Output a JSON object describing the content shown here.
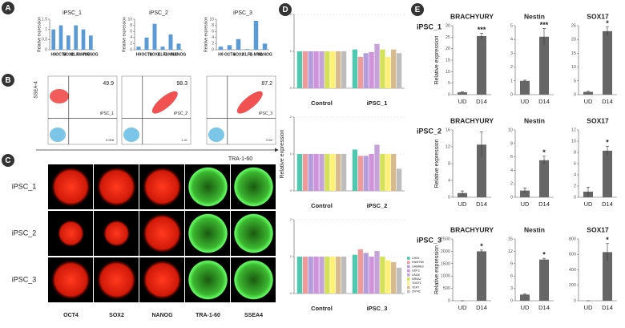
{
  "panel_labels": [
    "A",
    "B",
    "C",
    "D",
    "E"
  ],
  "flow_cytometry": {
    "y_label": "SSEA-4",
    "x_label": "TRA-1-60",
    "plots": [
      {
        "label": "iPSC_1",
        "upper_right": 49.9,
        "lower_right": 0.006
      },
      {
        "label": "iPSC_2",
        "upper_right": 98.3,
        "lower_right": 1.41
      },
      {
        "label": "iPSC_3",
        "upper_right": 87.2,
        "lower_right": 0.52
      }
    ]
  },
  "images": {
    "rows": [
      "iPSC_1",
      "iPSC_2",
      "iPSC_3"
    ],
    "columns": [
      "OCT4",
      "SOX2",
      "NANOG",
      "TRA-1-60",
      "SSEA4"
    ]
  },
  "chart_data": [
    {
      "type": "bar",
      "title": "iPSC_1",
      "y_label": "Relative expression",
      "categories": [
        "H9",
        "OCT4",
        "SOX2",
        "KLF4",
        "C-MYC",
        "NANOG"
      ],
      "values": [
        1,
        1.2,
        0.7,
        1.2,
        1.0,
        0.7
      ],
      "color": "#5b9bd5",
      "ylim": [
        0,
        1.5
      ],
      "yticks": [
        0,
        0.5,
        1,
        1.5
      ]
    },
    {
      "type": "bar",
      "title": "iPSC_2",
      "y_label": "Relative expression",
      "categories": [
        "H9",
        "OCT4",
        "SOX2",
        "KLF4",
        "C-MYC",
        "NANOG"
      ],
      "values": [
        1,
        4,
        8.5,
        1,
        5,
        2
      ],
      "color": "#5b9bd5",
      "ylim": [
        0,
        10
      ],
      "yticks": [
        0,
        2,
        4,
        6,
        8,
        10
      ]
    },
    {
      "type": "bar",
      "title": "iPSC_3",
      "y_label": "Relative expression",
      "categories": [
        "H9",
        "OCT4",
        "SOX2",
        "KLF4",
        "C-MYC",
        "NANOG"
      ],
      "values": [
        1,
        1.5,
        3.5,
        0.2,
        9.5,
        2
      ],
      "color": "#5b9bd5",
      "ylim": [
        0,
        10
      ],
      "yticks": [
        0,
        2,
        4,
        6,
        8,
        10
      ]
    },
    {
      "type": "bar",
      "categories": [
        "Control",
        "iPSC_1"
      ],
      "ylim": [
        0,
        2
      ],
      "yticks": [
        0,
        1,
        2
      ],
      "series": [
        {
          "color": "#4ec9b0",
          "values": [
            1,
            1.05
          ]
        },
        {
          "color": "#ef9a9a",
          "values": [
            1,
            0.85
          ]
        },
        {
          "color": "#b39ddb",
          "values": [
            1,
            0.95
          ]
        },
        {
          "color": "#ce93d8",
          "values": [
            1,
            0.98
          ]
        },
        {
          "color": "#c5a3d8",
          "values": [
            1,
            1.2
          ]
        },
        {
          "color": "#d4e157",
          "values": [
            1,
            1.05
          ]
        },
        {
          "color": "#fff176",
          "values": [
            1,
            0.85
          ]
        },
        {
          "color": "#d7b98e",
          "values": [
            1,
            1.05
          ]
        },
        {
          "color": "#bdbdbd",
          "values": [
            1,
            0.95
          ]
        }
      ]
    },
    {
      "type": "bar",
      "y_label": "Relative expression",
      "categories": [
        "Control",
        "iPSC_2"
      ],
      "ylim": [
        0,
        2
      ],
      "yticks": [
        0,
        1,
        2
      ],
      "series": [
        {
          "color": "#4ec9b0",
          "values": [
            1,
            1.12
          ]
        },
        {
          "color": "#ef9a9a",
          "values": [
            1,
            0.95
          ]
        },
        {
          "color": "#b39ddb",
          "values": [
            1,
            0.95
          ]
        },
        {
          "color": "#ce93d8",
          "values": [
            1,
            1.0
          ]
        },
        {
          "color": "#c5a3d8",
          "values": [
            1,
            1.25
          ]
        },
        {
          "color": "#d4e157",
          "values": [
            1,
            1.0
          ]
        },
        {
          "color": "#fff176",
          "values": [
            1,
            1.0
          ]
        },
        {
          "color": "#d7b98e",
          "values": [
            1,
            1.0
          ]
        },
        {
          "color": "#bdbdbd",
          "values": [
            1,
            0.6
          ]
        }
      ]
    },
    {
      "type": "bar",
      "categories": [
        "Control",
        "iPSC_3"
      ],
      "ylim": [
        0,
        2
      ],
      "yticks": [
        0,
        1,
        2
      ],
      "series": [
        {
          "name": "CHD1",
          "color": "#4ec9b0",
          "values": [
            1,
            1.05
          ]
        },
        {
          "name": "DNMT3B",
          "color": "#ef9a9a",
          "values": [
            1,
            1.2
          ]
        },
        {
          "name": "GABRB3",
          "color": "#b39ddb",
          "values": [
            1,
            1.1
          ]
        },
        {
          "name": "GDF3",
          "color": "#ce93d8",
          "values": [
            1,
            1.0
          ]
        },
        {
          "name": "LIN28",
          "color": "#c5a3d8",
          "values": [
            1,
            1.15
          ]
        },
        {
          "name": "NR5A2",
          "color": "#d4e157",
          "values": [
            1,
            1.0
          ]
        },
        {
          "name": "TDGF1",
          "color": "#fff176",
          "values": [
            1,
            0.9
          ]
        },
        {
          "name": "TERT",
          "color": "#d7b98e",
          "values": [
            1,
            0.85
          ]
        },
        {
          "name": "ZFP42",
          "color": "#bdbdbd",
          "values": [
            1,
            0.7
          ]
        }
      ]
    },
    {
      "type": "bar",
      "row_label": "iPSC_1",
      "title": "BRACHYURY",
      "y_label": "Relative expression",
      "categories": [
        "UD",
        "D14"
      ],
      "values": [
        1,
        25.5
      ],
      "errors": [
        0.2,
        1.2
      ],
      "significance": [
        null,
        "***"
      ],
      "color": "#666666",
      "ylim": [
        0,
        30
      ],
      "yticks": [
        0,
        5,
        10,
        15,
        20,
        25,
        30
      ]
    },
    {
      "type": "bar",
      "title": "Nestin",
      "categories": [
        "UD",
        "D14"
      ],
      "values": [
        1,
        4.2
      ],
      "errors": [
        0.05,
        0.6
      ],
      "significance": [
        null,
        "***"
      ],
      "color": "#666666",
      "ylim": [
        0,
        5
      ],
      "yticks": [
        0,
        1,
        2,
        3,
        4,
        5
      ]
    },
    {
      "type": "bar",
      "title": "SOX17",
      "categories": [
        "UD",
        "D14"
      ],
      "values": [
        1,
        23
      ],
      "errors": [
        0.2,
        1.5
      ],
      "significance": [
        null,
        "*"
      ],
      "color": "#666666",
      "ylim": [
        0,
        25
      ],
      "yticks": [
        0,
        5,
        10,
        15,
        20,
        25
      ]
    },
    {
      "type": "bar",
      "row_label": "iPSC_2",
      "title": "BRACHYURY",
      "y_label": "Relative expression",
      "categories": [
        "UD",
        "D14"
      ],
      "values": [
        1,
        12.5
      ],
      "errors": [
        0.5,
        3
      ],
      "significance": [
        null,
        null
      ],
      "color": "#666666",
      "ylim": [
        0,
        16
      ],
      "yticks": [
        0,
        4,
        8,
        12,
        16
      ]
    },
    {
      "type": "bar",
      "title": "Nestin",
      "categories": [
        "UD",
        "D14"
      ],
      "values": [
        1,
        5.5
      ],
      "errors": [
        0.4,
        0.6
      ],
      "significance": [
        null,
        "*"
      ],
      "color": "#666666",
      "ylim": [
        0,
        10
      ],
      "yticks": [
        0,
        2,
        4,
        6,
        8,
        10
      ]
    },
    {
      "type": "bar",
      "title": "SOX17",
      "categories": [
        "UD",
        "D14"
      ],
      "values": [
        1,
        8.3
      ],
      "errors": [
        0.8,
        0.8
      ],
      "significance": [
        null,
        "*"
      ],
      "color": "#666666",
      "ylim": [
        0,
        12
      ],
      "yticks": [
        0,
        2,
        4,
        6,
        8,
        10,
        12
      ]
    },
    {
      "type": "bar",
      "row_label": "iPSC_3",
      "title": "BRACHYURY",
      "y_label": "Relative expression",
      "categories": [
        "UD",
        "D14"
      ],
      "values": [
        0,
        2000
      ],
      "errors": [
        0,
        50
      ],
      "significance": [
        null,
        "*"
      ],
      "color": "#666666",
      "ylim": [
        0,
        2500
      ],
      "yticks": [
        0,
        500,
        1000,
        1500,
        2000,
        2500
      ]
    },
    {
      "type": "bar",
      "title": "Nestin",
      "categories": [
        "UD",
        "D14"
      ],
      "values": [
        1.5,
        10
      ],
      "errors": [
        0.2,
        0.3
      ],
      "significance": [
        null,
        "*"
      ],
      "color": "#666666",
      "ylim": [
        0,
        15
      ],
      "yticks": [
        0,
        3,
        6,
        9,
        12,
        15
      ]
    },
    {
      "type": "bar",
      "title": "SOX17",
      "categories": [
        "UD",
        "D14"
      ],
      "values": [
        0,
        630
      ],
      "errors": [
        0,
        110
      ],
      "significance": [
        null,
        "*"
      ],
      "color": "#666666",
      "ylim": [
        0,
        800
      ],
      "yticks": [
        0,
        200,
        400,
        600,
        800
      ]
    }
  ]
}
